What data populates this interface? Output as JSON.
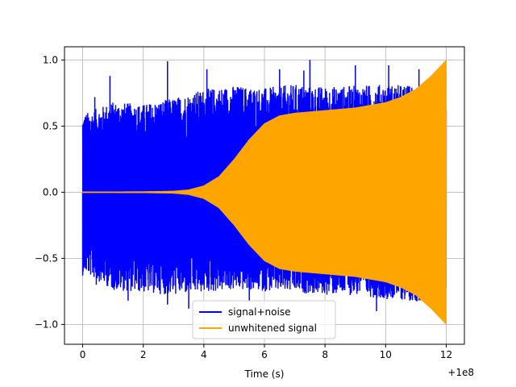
{
  "chart_data": {
    "type": "line",
    "title": "",
    "xlabel": "Time (s)",
    "ylabel": "",
    "x_offset_label": "+1e8",
    "xlim": [
      -0.6,
      12.6
    ],
    "ylim": [
      -1.15,
      1.1
    ],
    "x_ticks": [
      0,
      2,
      4,
      6,
      8,
      10,
      12
    ],
    "x_tick_labels": [
      "0",
      "2",
      "4",
      "6",
      "8",
      "10",
      "12"
    ],
    "y_ticks": [
      -1.0,
      -0.5,
      0.0,
      0.5,
      1.0
    ],
    "y_tick_labels": [
      "−1.0",
      "−0.5",
      "0.0",
      "0.5",
      "1.0"
    ],
    "grid": true,
    "legend_position": "lower-center",
    "series": [
      {
        "name": "signal+noise",
        "color": "#0000ff",
        "envelope": {
          "x": [
            0,
            1,
            2,
            3,
            4,
            5,
            6,
            7,
            8,
            9,
            10,
            11,
            12
          ],
          "upper": [
            0.62,
            0.72,
            0.7,
            0.75,
            0.82,
            0.85,
            0.83,
            0.86,
            0.84,
            0.85,
            0.86,
            0.85,
            0.88
          ],
          "lower": [
            -0.63,
            -0.78,
            -0.8,
            -0.82,
            -0.8,
            -0.78,
            -0.79,
            -0.8,
            -0.82,
            -0.82,
            -0.85,
            -0.87,
            -0.87
          ]
        },
        "spikes": [
          {
            "x": 0.0,
            "y": -0.63
          },
          {
            "x": 0.45,
            "y": -0.7
          },
          {
            "x": 1.0,
            "y": -0.72
          },
          {
            "x": 1.5,
            "y": -0.82
          },
          {
            "x": 2.8,
            "y": -0.85
          },
          {
            "x": 3.5,
            "y": -0.88
          },
          {
            "x": 5.5,
            "y": -0.82
          },
          {
            "x": 9.7,
            "y": -0.9
          },
          {
            "x": 0.4,
            "y": 0.72
          },
          {
            "x": 0.9,
            "y": 0.88
          },
          {
            "x": 2.8,
            "y": 0.99
          },
          {
            "x": 4.1,
            "y": 0.93
          },
          {
            "x": 6.5,
            "y": 0.93
          },
          {
            "x": 7.3,
            "y": 0.92
          },
          {
            "x": 7.5,
            "y": 1.0
          },
          {
            "x": 9.0,
            "y": 0.96
          },
          {
            "x": 10.1,
            "y": 0.96
          },
          {
            "x": 11.1,
            "y": 0.93
          }
        ]
      },
      {
        "name": "unwhitened signal",
        "color": "#ffa500",
        "envelope": {
          "x": [
            0,
            1,
            2,
            3,
            3.5,
            4,
            4.5,
            5,
            5.5,
            6,
            6.5,
            7,
            8,
            9,
            10,
            10.5,
            11,
            11.5,
            12
          ],
          "upper": [
            0.005,
            0.005,
            0.006,
            0.01,
            0.02,
            0.05,
            0.12,
            0.25,
            0.4,
            0.52,
            0.58,
            0.6,
            0.62,
            0.64,
            0.68,
            0.72,
            0.78,
            0.88,
            1.0
          ],
          "lower": [
            -0.005,
            -0.005,
            -0.006,
            -0.01,
            -0.02,
            -0.05,
            -0.12,
            -0.25,
            -0.4,
            -0.52,
            -0.58,
            -0.6,
            -0.62,
            -0.64,
            -0.68,
            -0.72,
            -0.78,
            -0.88,
            -1.0
          ]
        }
      }
    ]
  }
}
